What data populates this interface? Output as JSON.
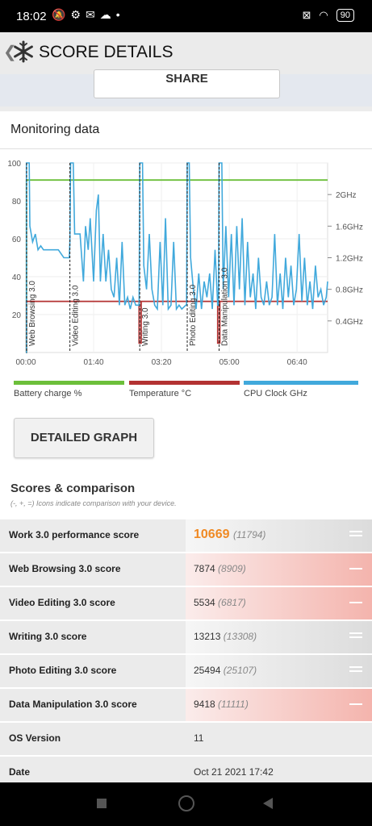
{
  "status": {
    "time": "18:02",
    "battery": "90"
  },
  "appbar": {
    "back_glyph": "❮",
    "title": "SCORE DETAILS"
  },
  "share_label": "SHARE",
  "monitoring": {
    "title": "Monitoring data"
  },
  "chart_data": {
    "type": "line",
    "y_left_ticks": [
      "100",
      "80",
      "60",
      "40",
      "20"
    ],
    "y_right_ticks": [
      "2GHz",
      "1.6GHz",
      "1.2GHz",
      "0.8GHz",
      "0.4GHz"
    ],
    "x_ticks": [
      "00:00",
      "01:40",
      "03:20",
      "05:00",
      "06:40"
    ],
    "x_range_seconds": [
      0,
      445
    ],
    "y_left_range": [
      0,
      100
    ],
    "y_right_range_ghz": [
      0,
      2.4
    ],
    "segments": [
      {
        "label": "Web Browsing 3.0",
        "start": 0
      },
      {
        "label": "Video Editing 3.0",
        "start": 65
      },
      {
        "label": "Writing 3.0",
        "start": 168
      },
      {
        "label": "Photo Editing 3.0",
        "start": 238
      },
      {
        "label": "Data Manipulation 3.0",
        "start": 285
      }
    ],
    "series": [
      {
        "name": "Battery charge %",
        "color": "#6cbf3a",
        "points": [
          [
            0,
            0
          ],
          [
            1,
            0
          ],
          [
            1,
            91
          ],
          [
            445,
            91
          ]
        ]
      },
      {
        "name": "Temperature °C",
        "color": "#b33232",
        "points": [
          [
            0,
            0
          ],
          [
            1,
            0
          ],
          [
            1,
            27
          ],
          [
            167,
            27
          ],
          [
            167,
            5
          ],
          [
            170,
            5
          ],
          [
            170,
            27
          ],
          [
            283,
            27
          ],
          [
            283,
            5
          ],
          [
            286,
            5
          ],
          [
            286,
            27
          ],
          [
            445,
            27
          ]
        ]
      },
      {
        "name": "CPU Clock GHz",
        "color": "#41a9dc",
        "points": [
          [
            0,
            0
          ],
          [
            1,
            0
          ],
          [
            1,
            2.4
          ],
          [
            5,
            2.4
          ],
          [
            6,
            1.6
          ],
          [
            10,
            1.4
          ],
          [
            14,
            1.5
          ],
          [
            18,
            1.3
          ],
          [
            22,
            1.35
          ],
          [
            26,
            1.3
          ],
          [
            34,
            1.3
          ],
          [
            40,
            1.3
          ],
          [
            48,
            1.3
          ],
          [
            56,
            1.2
          ],
          [
            64,
            1.2
          ],
          [
            65,
            1.4
          ],
          [
            66,
            2.4
          ],
          [
            70,
            2.4
          ],
          [
            72,
            1.5
          ],
          [
            75,
            1.5
          ],
          [
            80,
            1.5
          ],
          [
            85,
            0.9
          ],
          [
            88,
            1.6
          ],
          [
            92,
            1.3
          ],
          [
            95,
            1.7
          ],
          [
            100,
            0.9
          ],
          [
            104,
            1.8
          ],
          [
            107,
            2.0
          ],
          [
            110,
            0.9
          ],
          [
            114,
            1.5
          ],
          [
            118,
            0.9
          ],
          [
            122,
            1.3
          ],
          [
            126,
            0.8
          ],
          [
            130,
            0.7
          ],
          [
            134,
            1.2
          ],
          [
            138,
            0.6
          ],
          [
            142,
            1.4
          ],
          [
            146,
            0.6
          ],
          [
            150,
            0.7
          ],
          [
            154,
            0.55
          ],
          [
            158,
            0.7
          ],
          [
            162,
            0.6
          ],
          [
            166,
            0.6
          ],
          [
            167,
            0.6
          ],
          [
            168,
            2.4
          ],
          [
            172,
            2.4
          ],
          [
            174,
            1.1
          ],
          [
            178,
            0.8
          ],
          [
            182,
            1.5
          ],
          [
            186,
            0.8
          ],
          [
            190,
            0.6
          ],
          [
            194,
            0.55
          ],
          [
            198,
            1.4
          ],
          [
            202,
            0.6
          ],
          [
            206,
            1.7
          ],
          [
            210,
            0.55
          ],
          [
            214,
            0.6
          ],
          [
            218,
            1.4
          ],
          [
            222,
            0.55
          ],
          [
            226,
            0.6
          ],
          [
            230,
            0.55
          ],
          [
            236,
            0.6
          ],
          [
            237,
            0.6
          ],
          [
            238,
            2.4
          ],
          [
            241,
            2.4
          ],
          [
            243,
            1.2
          ],
          [
            247,
            0.8
          ],
          [
            251,
            0.55
          ],
          [
            255,
            1.0
          ],
          [
            259,
            0.55
          ],
          [
            263,
            0.9
          ],
          [
            267,
            0.7
          ],
          [
            271,
            1.0
          ],
          [
            275,
            0.55
          ],
          [
            279,
            1.3
          ],
          [
            283,
            0.6
          ],
          [
            284,
            0.6
          ],
          [
            285,
            2.4
          ],
          [
            289,
            2.4
          ],
          [
            291,
            0.8
          ],
          [
            295,
            1.6
          ],
          [
            299,
            0.7
          ],
          [
            303,
            1.5
          ],
          [
            307,
            0.6
          ],
          [
            311,
            1.6
          ],
          [
            315,
            0.8
          ],
          [
            319,
            1.7
          ],
          [
            323,
            0.6
          ],
          [
            327,
            1.4
          ],
          [
            331,
            0.7
          ],
          [
            335,
            1.0
          ],
          [
            339,
            0.55
          ],
          [
            343,
            1.2
          ],
          [
            347,
            0.7
          ],
          [
            351,
            0.6
          ],
          [
            355,
            0.9
          ],
          [
            359,
            0.6
          ],
          [
            363,
            0.7
          ],
          [
            367,
            1.5
          ],
          [
            371,
            0.6
          ],
          [
            375,
            1.0
          ],
          [
            379,
            0.55
          ],
          [
            383,
            1.2
          ],
          [
            387,
            0.7
          ],
          [
            391,
            1.1
          ],
          [
            395,
            0.6
          ],
          [
            399,
            0.8
          ],
          [
            403,
            1.5
          ],
          [
            407,
            0.65
          ],
          [
            411,
            1.2
          ],
          [
            415,
            0.6
          ],
          [
            419,
            0.9
          ],
          [
            423,
            0.55
          ],
          [
            427,
            1.1
          ],
          [
            431,
            0.7
          ],
          [
            435,
            0.8
          ],
          [
            439,
            0.6
          ],
          [
            443,
            0.7
          ],
          [
            445,
            0.9
          ]
        ]
      }
    ]
  },
  "legend": [
    {
      "label": "Battery charge %",
      "color": "#6cbf3a"
    },
    {
      "label": "Temperature °C",
      "color": "#b33232"
    },
    {
      "label": "CPU Clock GHz",
      "color": "#41a9dc"
    }
  ],
  "detailed_button": "DETAILED GRAPH",
  "scores": {
    "title": "Scores & comparison",
    "subtitle": "(-, +, =) Icons indicate comparison with your device.",
    "rows": [
      {
        "label": "Work 3.0 performance score",
        "value": "10669",
        "ref": "(11794)",
        "cmp": "neutral",
        "big": true
      },
      {
        "label": "Web Browsing 3.0 score",
        "value": "7874",
        "ref": "(8909)",
        "cmp": "worse"
      },
      {
        "label": "Video Editing 3.0 score",
        "value": "5534",
        "ref": "(6817)",
        "cmp": "worse"
      },
      {
        "label": "Writing 3.0 score",
        "value": "13213",
        "ref": "(13308)",
        "cmp": "neutral"
      },
      {
        "label": "Photo Editing 3.0 score",
        "value": "25494",
        "ref": "(25107)",
        "cmp": "neutral"
      },
      {
        "label": "Data Manipulation 3.0 score",
        "value": "9418",
        "ref": "(11111)",
        "cmp": "worse"
      },
      {
        "label": "OS Version",
        "value": "11",
        "ref": "",
        "cmp": "none"
      },
      {
        "label": "Date",
        "value": "Oct 21 2021 17:42",
        "ref": "",
        "cmp": "none"
      }
    ]
  }
}
